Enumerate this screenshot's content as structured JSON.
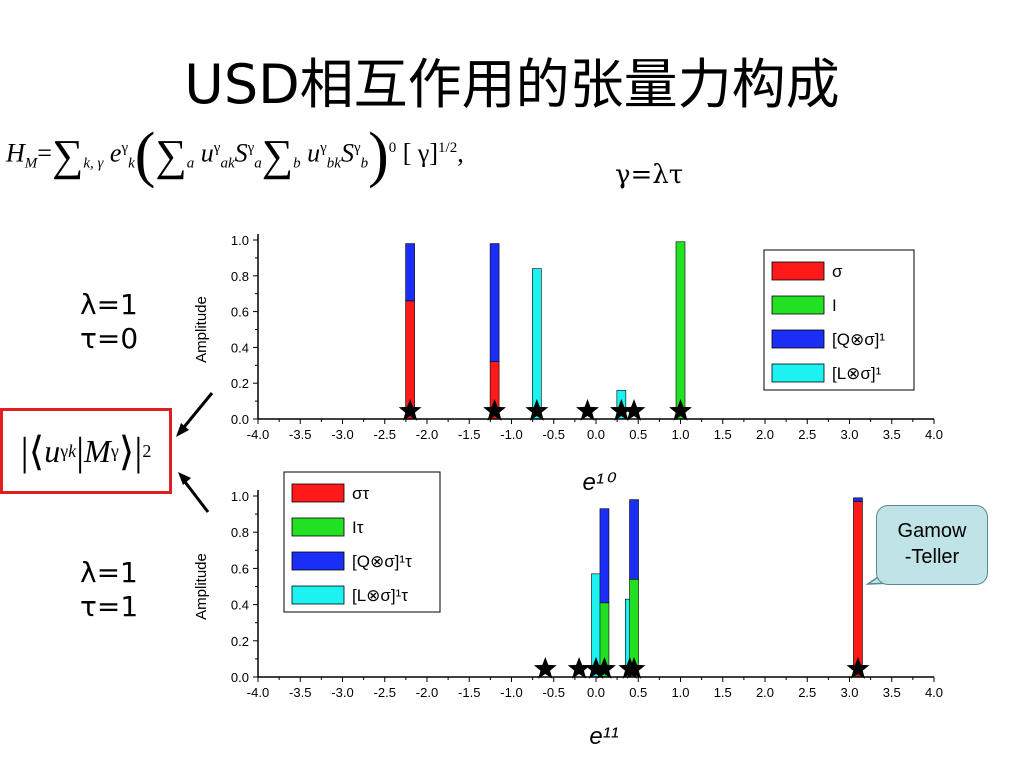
{
  "title": "USD相互作用的张量力构成",
  "formula": {
    "text": "H_M = Σ_{k,γ} e_k^γ ( Σ_a u_{ak}^γ S_a^γ Σ_b u_{bk}^γ S_b^γ )^0 [γ]^{1/2},",
    "lhs": "H",
    "lhs_sub": "M",
    "equals": "=",
    "sum1_sub": "k, γ",
    "e": "e",
    "e_sub": "k",
    "e_sup": "γ",
    "sum2_sub": "a",
    "u1": "u",
    "u1_sub": "ak",
    "u1_sup": "γ",
    "s1": "S",
    "s1_sub": "a",
    "s1_sup": "γ",
    "sum3_sub": "b",
    "u2": "u",
    "u2_sub": "bk",
    "u2_sup": "γ",
    "s2": "S",
    "s2_sub": "b",
    "s2_sup": "γ",
    "outer_sup": "0",
    "bracket": "[ γ]",
    "bracket_sup": "1/2",
    "tail": ","
  },
  "gamma_relation": "γ=λτ",
  "top_quantum": {
    "lambda": "λ=1",
    "tau": "τ=0"
  },
  "bottom_quantum": {
    "lambda": "λ=1",
    "tau": "τ=1"
  },
  "matrix_element": {
    "u": "u",
    "u_sub": "k",
    "u_sup": "γ",
    "m": "M",
    "m_sup": "γ",
    "power": "2"
  },
  "callout": {
    "line1": "Gamow",
    "line2": "-Teller"
  },
  "colors": {
    "red": "#ff1a1a",
    "green": "#22e022",
    "blue": "#1a2ef5",
    "cyan": "#1cf2f2",
    "callout_bg": "#bfe3e7",
    "box_border": "#e02020"
  },
  "chart_data": [
    {
      "type": "bar",
      "stacked": true,
      "ylabel": "Amplitude",
      "xlabel": "e¹⁰",
      "xlim": [
        -4.0,
        4.0
      ],
      "ylim": [
        0.0,
        1.0
      ],
      "xticks": [
        "-4.0",
        "-3.5",
        "-3.0",
        "-2.5",
        "-2.0",
        "-1.5",
        "-1.0",
        "-0.5",
        "0.0",
        "0.5",
        "1.0",
        "1.5",
        "2.0",
        "2.5",
        "3.0",
        "3.5",
        "4.0"
      ],
      "yticks": [
        "0.0",
        "0.2",
        "0.4",
        "0.6",
        "0.8",
        "1.0"
      ],
      "legend_position": "top-right",
      "legend": [
        {
          "name": "σ",
          "color": "#ff1a1a"
        },
        {
          "name": "I",
          "color": "#22e022"
        },
        {
          "name": "[Q⊗σ]¹",
          "color": "#1a2ef5"
        },
        {
          "name": "[L⊗σ]¹",
          "color": "#1cf2f2"
        }
      ],
      "bars": [
        {
          "x": -2.2,
          "segments": [
            {
              "series": "σ",
              "value": 0.66
            },
            {
              "series": "[Q⊗σ]¹",
              "value": 0.32
            }
          ]
        },
        {
          "x": -1.2,
          "segments": [
            {
              "series": "σ",
              "value": 0.32
            },
            {
              "series": "[Q⊗σ]¹",
              "value": 0.66
            }
          ]
        },
        {
          "x": -0.7,
          "segments": [
            {
              "series": "[L⊗σ]¹",
              "value": 0.84
            }
          ]
        },
        {
          "x": 0.3,
          "segments": [
            {
              "series": "[L⊗σ]¹",
              "value": 0.16
            }
          ]
        },
        {
          "x": 1.0,
          "segments": [
            {
              "series": "I",
              "value": 0.99
            }
          ]
        }
      ],
      "stars_x": [
        -2.2,
        -1.2,
        -0.7,
        -0.1,
        0.3,
        0.45,
        1.0
      ]
    },
    {
      "type": "bar",
      "stacked": true,
      "ylabel": "Amplitude",
      "xlabel": "e¹¹",
      "xlim": [
        -4.0,
        4.0
      ],
      "ylim": [
        0.0,
        1.0
      ],
      "xticks": [
        "-4.0",
        "-3.5",
        "-3.0",
        "-2.5",
        "-2.0",
        "-1.5",
        "-1.0",
        "-0.5",
        "0.0",
        "0.5",
        "1.0",
        "1.5",
        "2.0",
        "2.5",
        "3.0",
        "3.5",
        "4.0"
      ],
      "yticks": [
        "0.0",
        "0.2",
        "0.4",
        "0.6",
        "0.8",
        "1.0"
      ],
      "legend_position": "top-left",
      "legend": [
        {
          "name": "στ",
          "color": "#ff1a1a"
        },
        {
          "name": "Iτ",
          "color": "#22e022"
        },
        {
          "name": "[Q⊗σ]¹τ",
          "color": "#1a2ef5"
        },
        {
          "name": "[L⊗σ]¹τ",
          "color": "#1cf2f2"
        }
      ],
      "bars": [
        {
          "x": 0.0,
          "segments": [
            {
              "series": "[L⊗σ]¹τ",
              "value": 0.57
            }
          ]
        },
        {
          "x": 0.1,
          "segments": [
            {
              "series": "Iτ",
              "value": 0.41
            },
            {
              "series": "[Q⊗σ]¹τ",
              "value": 0.52
            }
          ]
        },
        {
          "x": 0.4,
          "segments": [
            {
              "series": "[L⊗σ]¹τ",
              "value": 0.43
            }
          ]
        },
        {
          "x": 0.45,
          "segments": [
            {
              "series": "Iτ",
              "value": 0.54
            },
            {
              "series": "[Q⊗σ]¹τ",
              "value": 0.44
            }
          ]
        },
        {
          "x": 3.1,
          "segments": [
            {
              "series": "στ",
              "value": 0.97
            },
            {
              "series": "[Q⊗σ]¹τ",
              "value": 0.02
            }
          ]
        }
      ],
      "stars_x": [
        -0.6,
        -0.2,
        0.0,
        0.1,
        0.4,
        0.45,
        3.1
      ]
    }
  ]
}
